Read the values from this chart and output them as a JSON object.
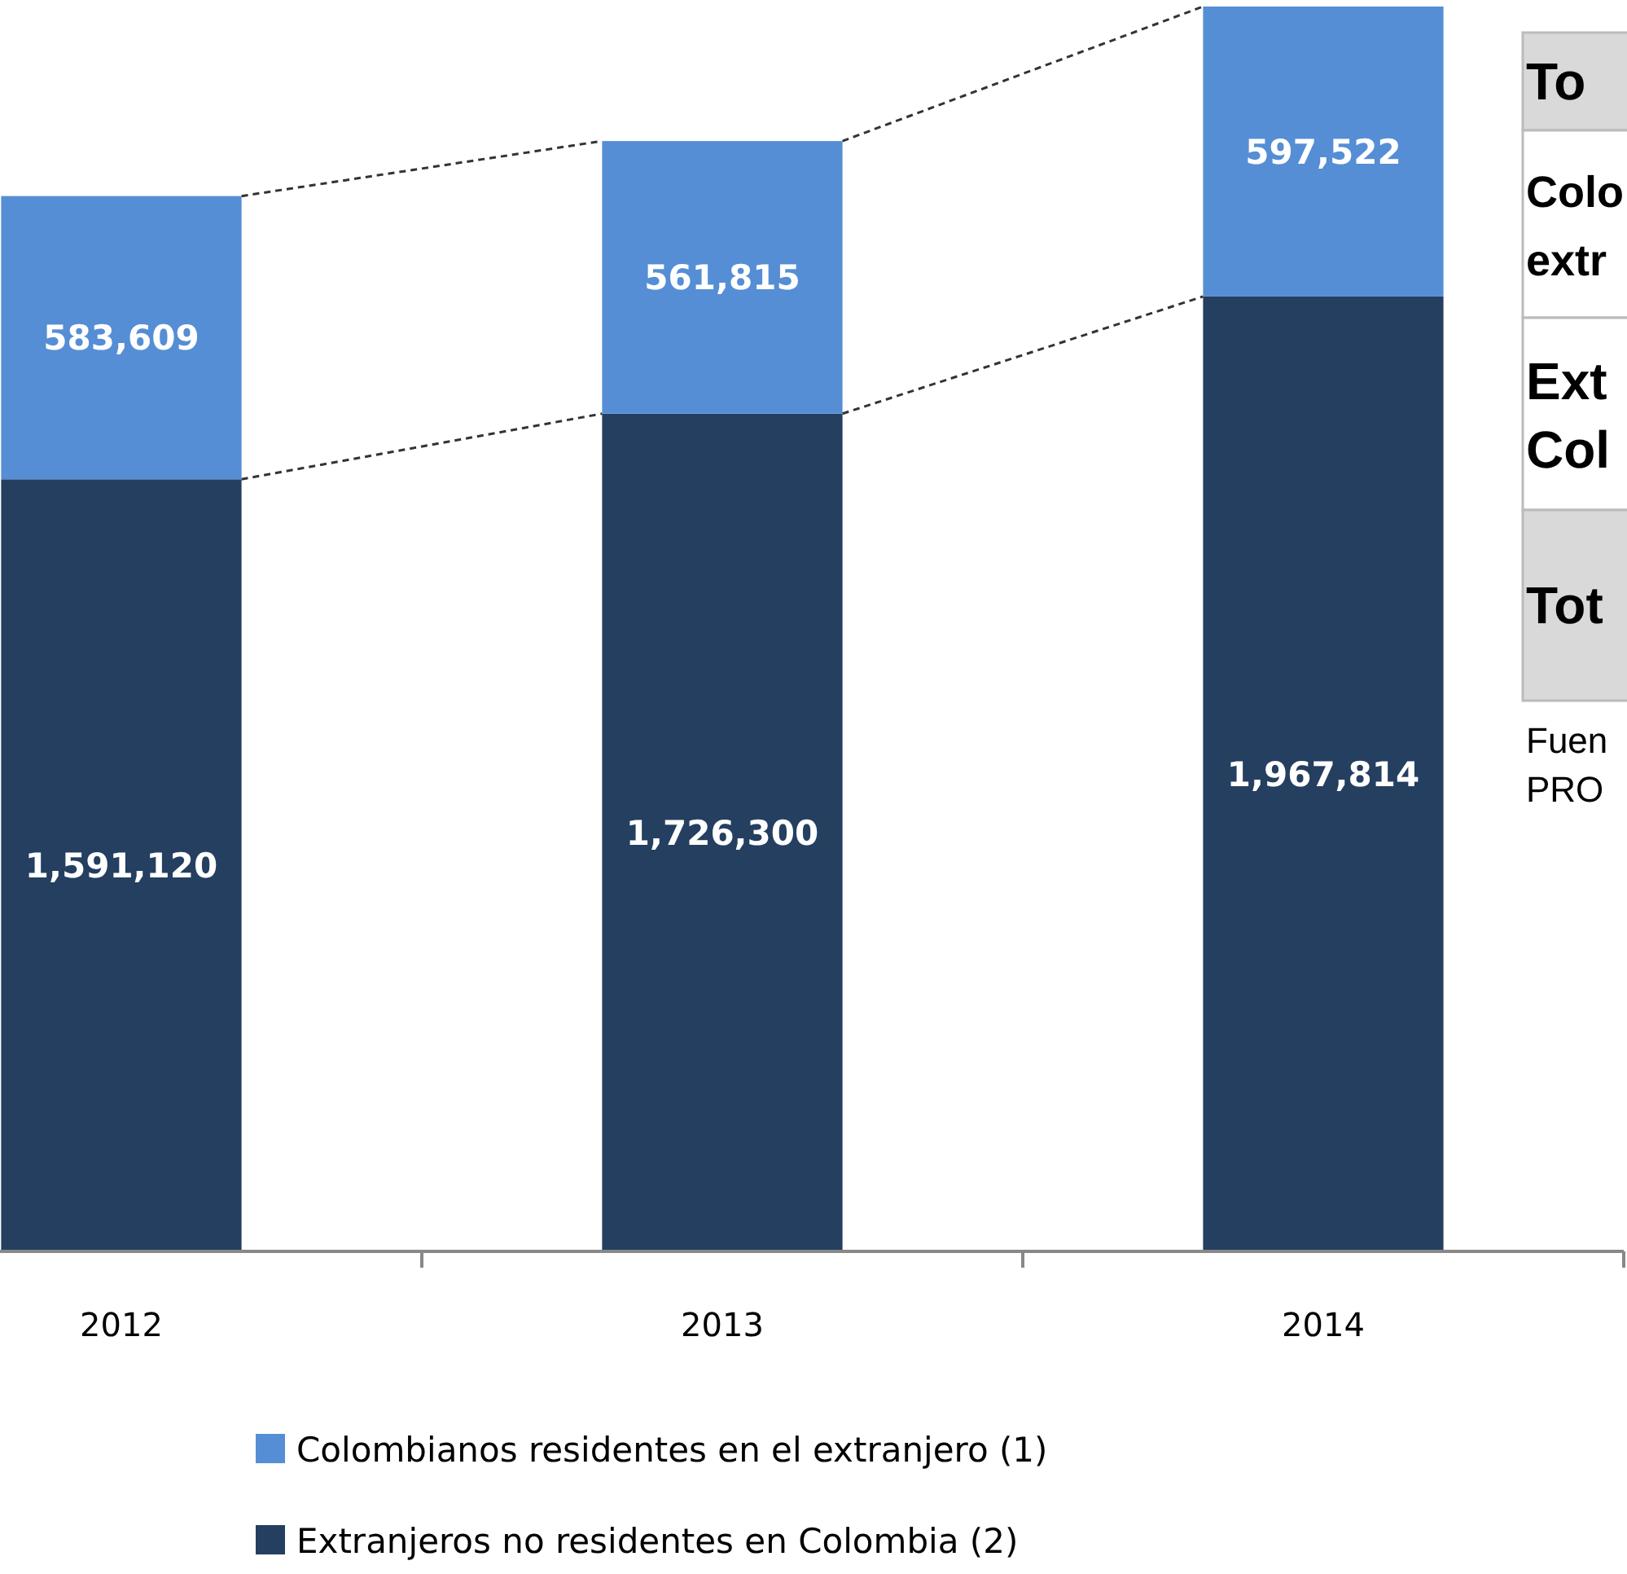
{
  "chart_data": {
    "type": "bar",
    "stacked": true,
    "categories": [
      "2012",
      "2013",
      "2014"
    ],
    "series": [
      {
        "name": "Extranjeros no residentes en Colombia (2)",
        "color": "#243f60",
        "values": [
          1591120,
          1726300,
          1967814
        ],
        "value_labels": [
          "1,591,120",
          "1,726,300",
          "1,967,814"
        ]
      },
      {
        "name": "Colombianos residentes en el extranjero (1)",
        "color": "#558ed5",
        "values": [
          583609,
          561815,
          597522
        ],
        "value_labels": [
          "583,609",
          "561,815",
          "597,522"
        ]
      }
    ],
    "legend": "bottom",
    "annotations": [
      "To",
      "Colo extr",
      "Ext Col",
      "Tot",
      "Fuen PRO"
    ]
  }
}
